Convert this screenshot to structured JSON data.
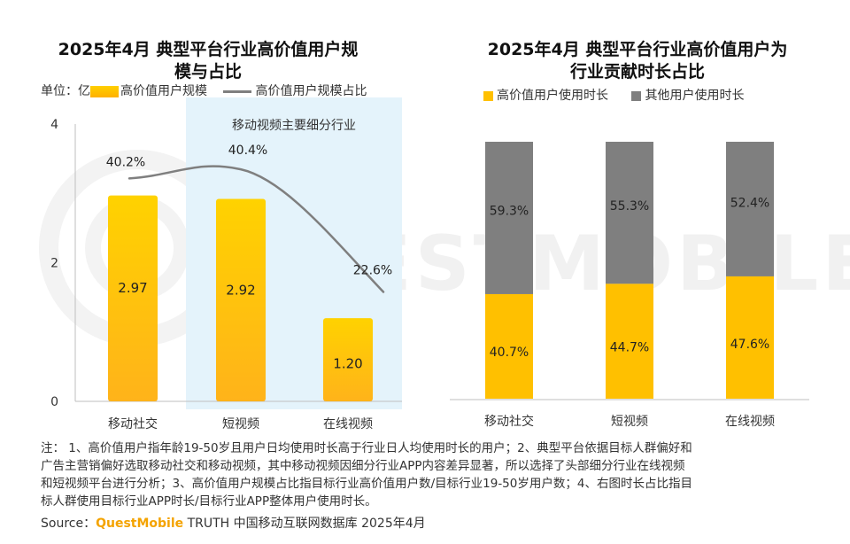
{
  "left_title": "2025年4月 典型平台行业高价值用户规模与占比",
  "left_title_line1": "2025年4月 典型平台行业高价值用户规",
  "left_title_line2": "模与占比",
  "right_title_line1": "2025年4月 典型平台行业高价值用户为",
  "right_title_line2": "行业贡献时长占比",
  "unit_label": "单位：亿",
  "highlight_label": "移动视频主要细分行业",
  "note": "注：  1、高价值用户指年龄19-50岁且用户日均使用时长高于行业日人均使用时长的用户；2、典型平台依据目标人群偏好和广告主营销偏好选取移动社交和移动视频，其中移动视频因细分行业APP内容差异显著，所以选择了头部细分行业在线视频和短视频平台进行分析；3、高价值用户规模占比指目标行业高价值用户数/目标行业19-50岁用户数；4、右图时长占比指目标人群使用目标行业APP时长/目标行业APP整体用户使用时长。",
  "note_lines": [
    "注：  1、高价值用户指年龄19-50岁且用户日均使用时长高于行业日人均使用时长的用户；2、典型平台依据目标人群偏好和",
    "广告主营销偏好选取移动社交和移动视频，其中移动视频因细分行业APP内容差异显著，所以选择了头部细分行业在线视频",
    "和短视频平台进行分析；3、高价值用户规模占比指目标行业高价值用户数/目标行业19-50岁用户数；4、右图时长占比指目",
    "标人群使用目标行业APP时长/目标行业APP整体用户使用时长。"
  ],
  "source_prefix": "Source：",
  "source_brand": "QuestMobile",
  "source_rest": " TRUTH 中国移动互联网数据库 2025年4月",
  "watermark": "QUESTMOBILE",
  "colors": {
    "bar": "#ffc000",
    "bar_dark": "#f7a21b",
    "gray": "#7f7f7f",
    "line": "#7f7f7f",
    "highlight": "#e4f3fb",
    "brand": "#f4a300"
  },
  "chart_data": [
    {
      "type": "bar",
      "title": "2025年4月 典型平台行业高价值用户规模与占比",
      "categories": [
        "移动社交",
        "短视频",
        "在线视频"
      ],
      "series": [
        {
          "name": "高价值用户规模",
          "type": "bar",
          "values": [
            2.97,
            2.92,
            1.2
          ],
          "labels": [
            "2.97",
            "2.92",
            "1.20"
          ]
        },
        {
          "name": "高价值用户规模占比",
          "type": "line",
          "values": [
            40.2,
            40.4,
            22.6
          ],
          "labels": [
            "40.2%",
            "40.4%",
            "22.6%"
          ]
        }
      ],
      "ylim": [
        0,
        4
      ],
      "yticks": [
        "0",
        "2",
        "4"
      ],
      "legend": "top",
      "grid": false
    },
    {
      "type": "bar",
      "stacked": true,
      "title": "2025年4月 典型平台行业高价值用户为行业贡献时长占比",
      "categories": [
        "移动社交",
        "短视频",
        "在线视频"
      ],
      "series": [
        {
          "name": "高价值用户使用时长",
          "values": [
            40.7,
            44.7,
            47.6
          ],
          "labels": [
            "40.7%",
            "44.7%",
            "47.6%"
          ]
        },
        {
          "name": "其他用户使用时长",
          "values": [
            59.3,
            55.3,
            52.4
          ],
          "labels": [
            "59.3%",
            "55.3%",
            "52.4%"
          ]
        }
      ],
      "ylim": [
        0,
        100
      ],
      "legend": "top",
      "grid": false
    }
  ]
}
